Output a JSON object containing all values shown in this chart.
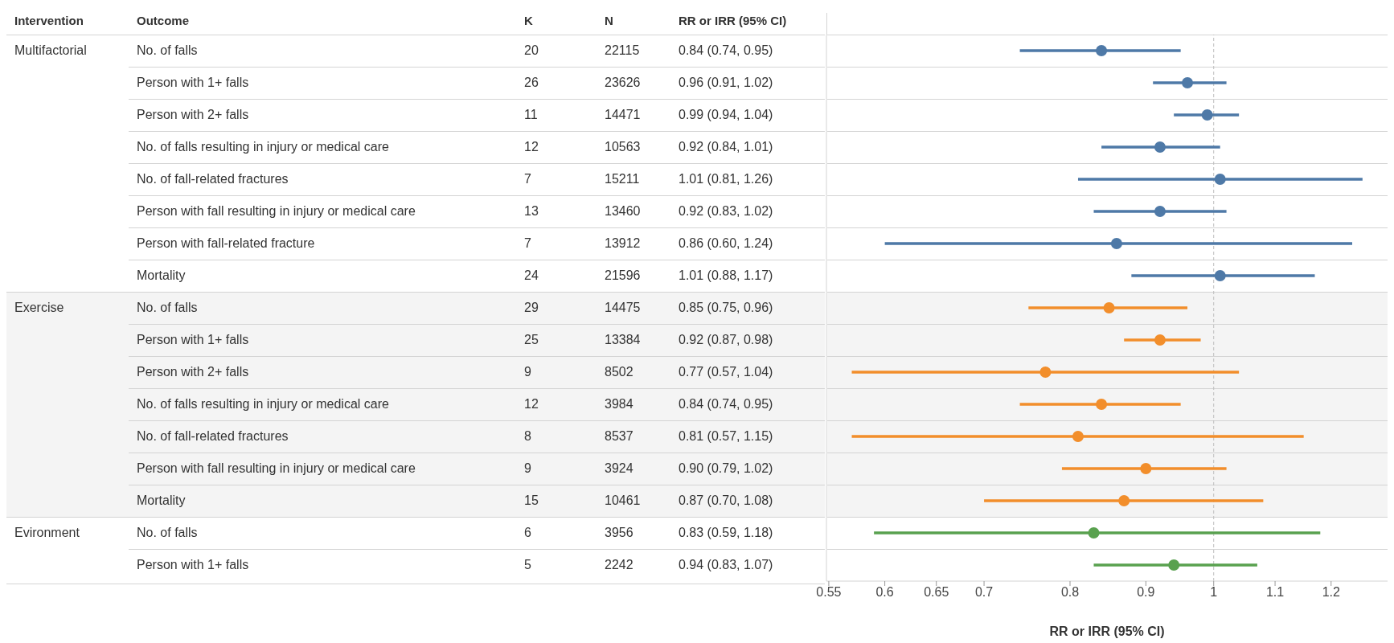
{
  "chart_data": [
    {
      "type": "other",
      "legend_title": "Intervention",
      "ylabel": "Outcome",
      "data_labels": true,
      "annotations": [
        "Multifactorial",
        "Exercise",
        "Evironment"
      ],
      "categories": [
        "No. of falls",
        "Person with 1+ falls",
        "Person with 2+ falls",
        "No. of falls resulting in injury or medical care",
        "No. of fall-related fractures",
        "Person with fall resulting in injury or medical care",
        "Person with fall-related fracture",
        "Mortality",
        "No. of falls",
        "Person with 1+ falls",
        "Person with 2+ falls",
        "No. of falls resulting in injury or medical care",
        "No. of fall-related fractures",
        "Person with fall resulting in injury or medical care",
        "Mortality",
        "No. of falls",
        "Person with 1+ falls"
      ],
      "series": [
        {
          "name": "K",
          "values": [
            20,
            26,
            11,
            12,
            7,
            13,
            7,
            24,
            29,
            25,
            9,
            12,
            8,
            9,
            15,
            6,
            5
          ]
        },
        {
          "name": "N",
          "values": [
            22115,
            23626,
            14471,
            10563,
            15211,
            13460,
            13912,
            21596,
            14475,
            13384,
            8502,
            3984,
            8537,
            3924,
            10461,
            3956,
            2242
          ]
        },
        {
          "name": "RR or IRR (95% CI)",
          "values": [
            0.84,
            0.96,
            0.99,
            0.92,
            1.01,
            0.92,
            0.86,
            1.01,
            0.85,
            0.92,
            0.77,
            0.84,
            0.81,
            0.9,
            0.87,
            0.83,
            0.94
          ],
          "value_labels": [
            "0.84 (0.74, 0.95)",
            "0.96 (0.91, 1.02)",
            "0.99 (0.94, 1.04)",
            "0.92 (0.84, 1.01)",
            "1.01 (0.81, 1.26)",
            "0.92 (0.83, 1.02)",
            "0.86 (0.60, 1.24)",
            "1.01 (0.88, 1.17)",
            "0.85 (0.75, 0.96)",
            "0.92 (0.87, 0.98)",
            "0.77 (0.57, 1.04)",
            "0.84 (0.74, 0.95)",
            "0.81 (0.57, 1.15)",
            "0.90 (0.79, 1.02)",
            "0.87 (0.70, 1.08)",
            "0.83 (0.59, 1.18)",
            "0.94 (0.83, 1.07)"
          ]
        }
      ]
    },
    {
      "type": "scatter",
      "orientation": "horizontal",
      "xlabel": "RR or IRR (95% CI)",
      "log": "x",
      "marker": "circle",
      "categories": [
        null,
        null,
        null,
        null,
        null,
        null,
        null,
        null,
        null,
        null,
        null,
        null,
        null,
        null,
        null,
        null,
        null
      ],
      "xlim": [
        0.548,
        1.31
      ],
      "xticks": [
        0.55,
        0.6,
        0.65,
        0.7,
        0.8,
        0.9,
        1,
        1.1,
        1.2
      ],
      "ref_lines": [
        {
          "axis": "x",
          "value": 1,
          "color": "#bdbdbd",
          "line_style": "dashed"
        }
      ],
      "series": [
        {
          "color": "#4e79a7",
          "values": [
            0.84,
            0.96,
            0.99,
            0.92,
            1.01,
            0.92,
            0.86,
            1.01,
            null,
            null,
            null,
            null,
            null,
            null,
            null,
            null,
            null
          ],
          "errors": [
            [
              0.74,
              0.95
            ],
            [
              0.91,
              1.02
            ],
            [
              0.94,
              1.04
            ],
            [
              0.84,
              1.01
            ],
            [
              0.81,
              1.26
            ],
            [
              0.83,
              1.02
            ],
            [
              0.6,
              1.24
            ],
            [
              0.88,
              1.17
            ],
            null,
            null,
            null,
            null,
            null,
            null,
            null,
            null,
            null
          ]
        },
        {
          "color": "#f28e2b",
          "values": [
            null,
            null,
            null,
            null,
            null,
            null,
            null,
            null,
            0.85,
            0.92,
            0.77,
            0.84,
            0.81,
            0.9,
            0.87,
            null,
            null
          ],
          "errors": [
            null,
            null,
            null,
            null,
            null,
            null,
            null,
            null,
            [
              0.75,
              0.96
            ],
            [
              0.87,
              0.98
            ],
            [
              0.57,
              1.04
            ],
            [
              0.74,
              0.95
            ],
            [
              0.57,
              1.15
            ],
            [
              0.79,
              1.02
            ],
            [
              0.7,
              1.08
            ],
            null,
            null
          ]
        },
        {
          "color": "#59a14f",
          "values": [
            null,
            null,
            null,
            null,
            null,
            null,
            null,
            null,
            null,
            null,
            null,
            null,
            null,
            null,
            null,
            0.83,
            0.94
          ],
          "errors": [
            null,
            null,
            null,
            null,
            null,
            null,
            null,
            null,
            null,
            null,
            null,
            null,
            null,
            null,
            null,
            [
              0.59,
              1.18
            ],
            [
              0.83,
              1.07
            ]
          ]
        }
      ]
    }
  ]
}
